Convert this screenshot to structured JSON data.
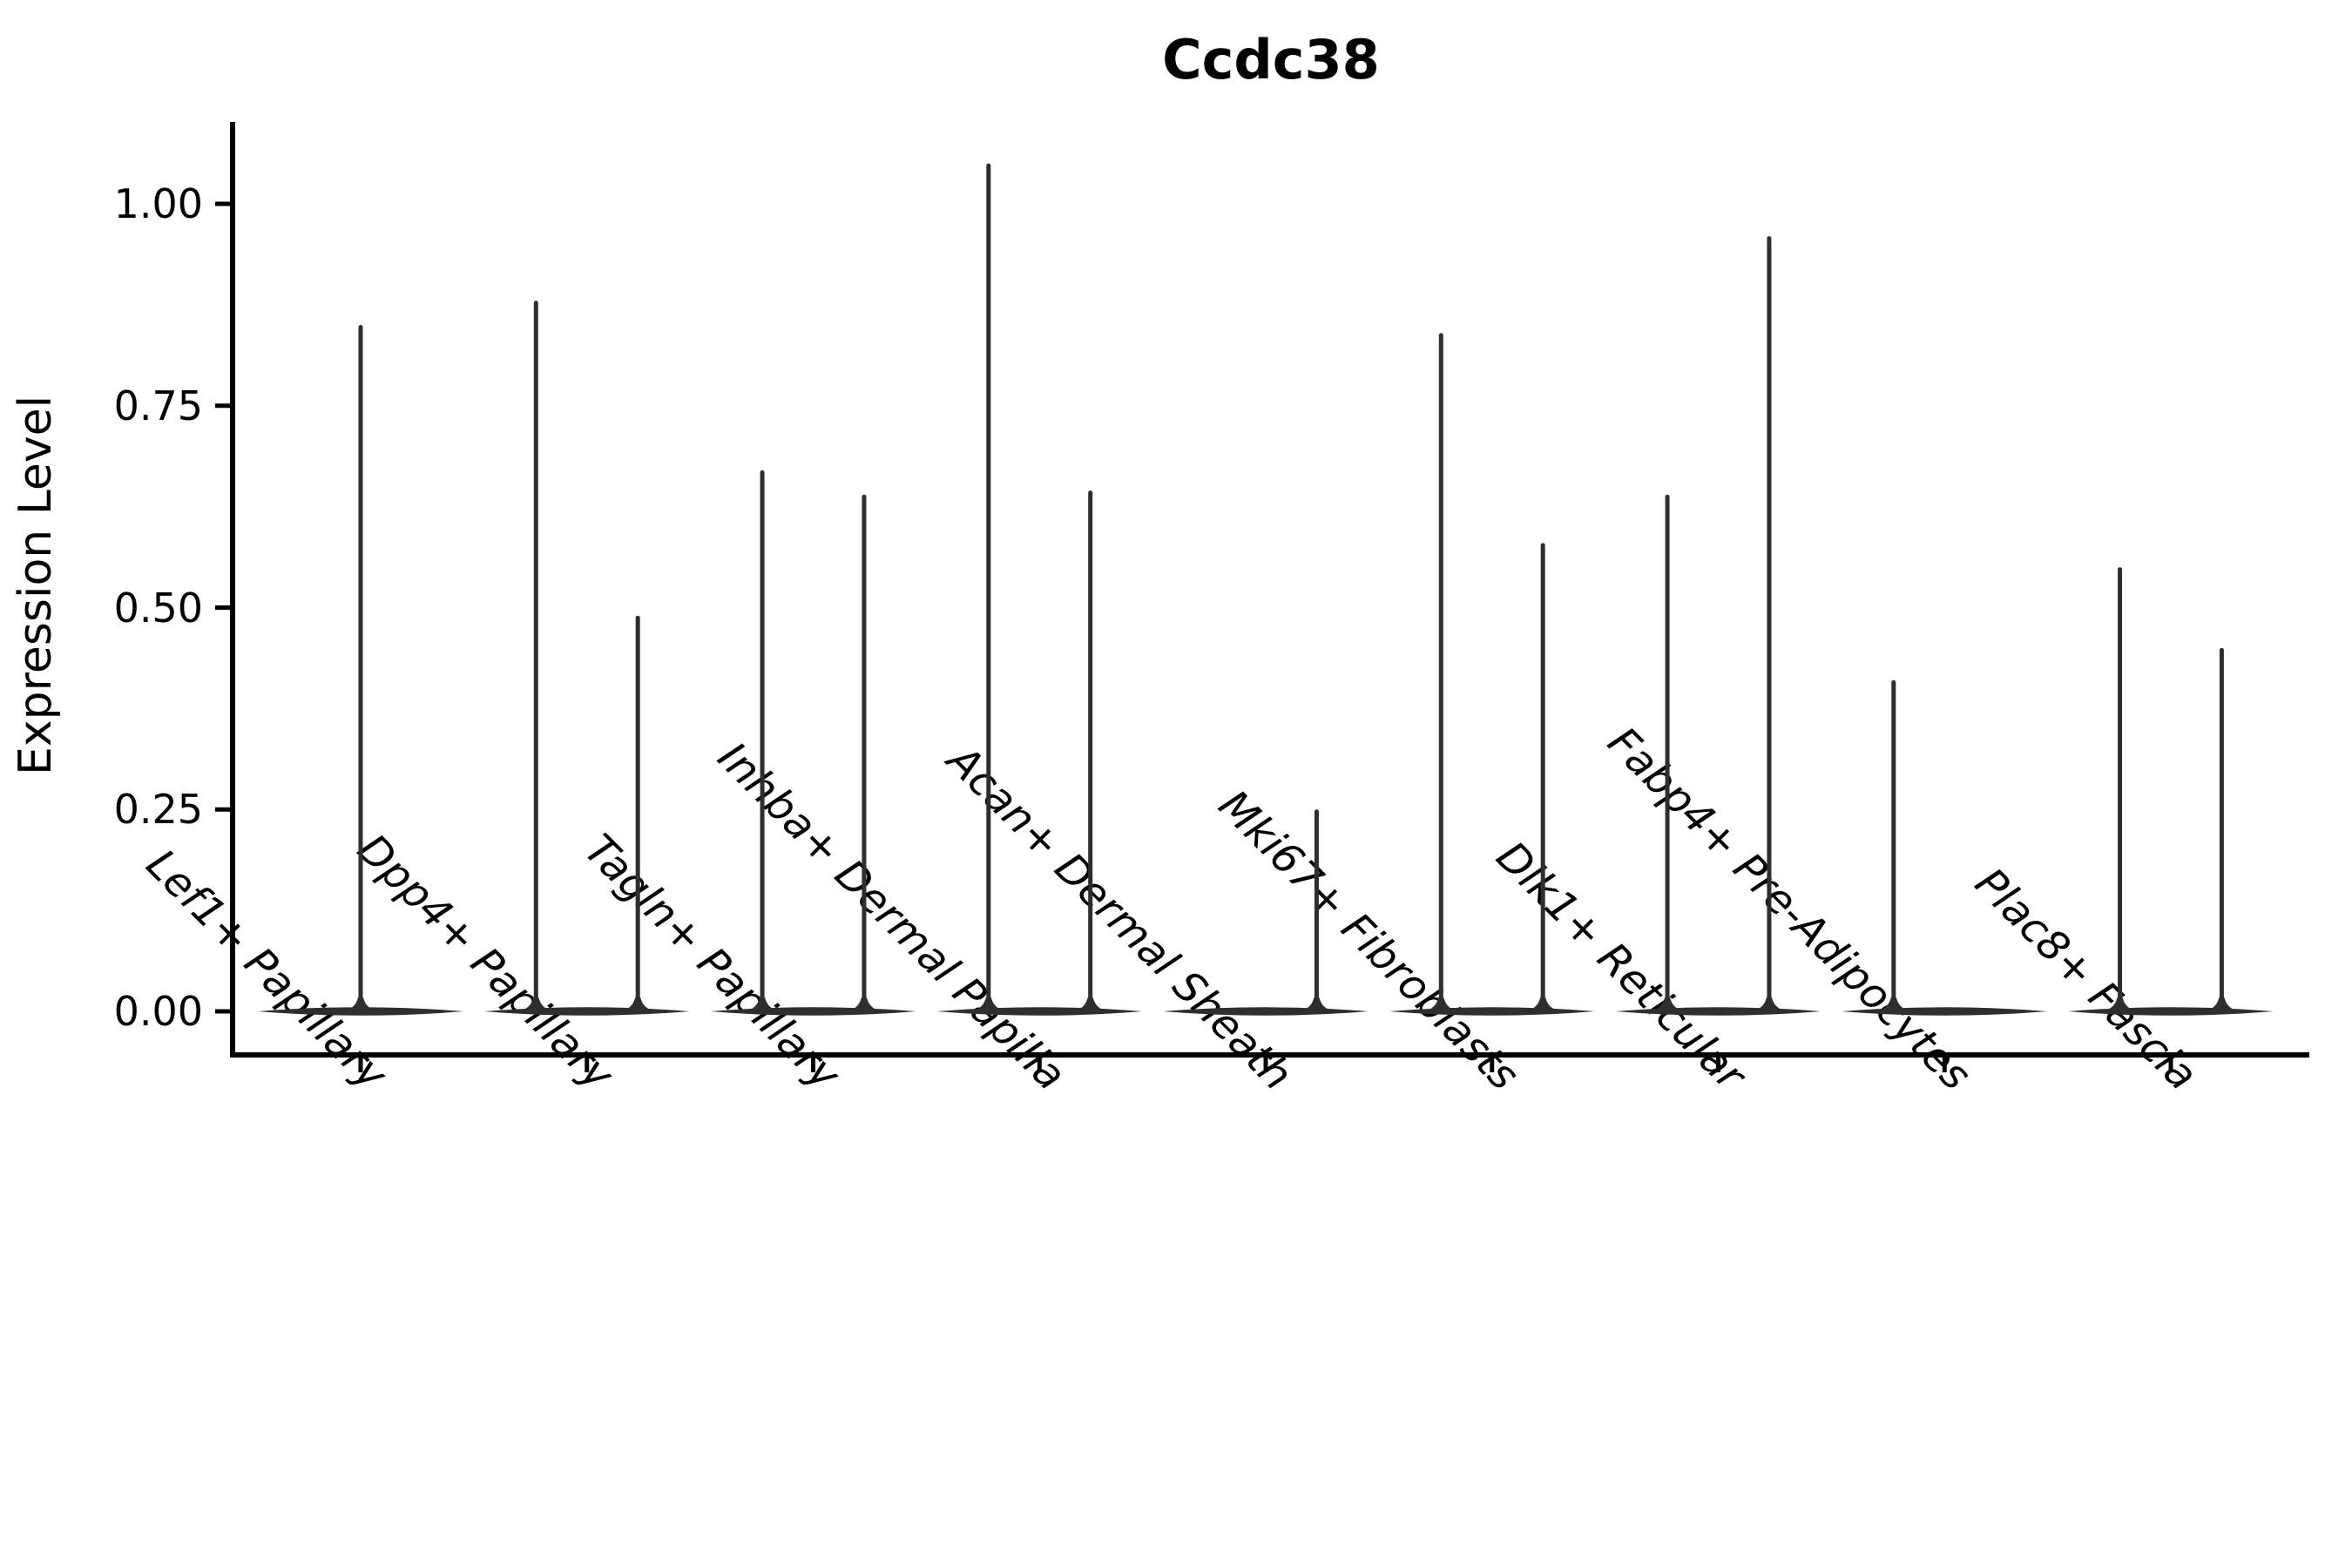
{
  "title": "Ccdc38",
  "y_axis": {
    "label": "Expression Level",
    "tick_labels": [
      "0.00",
      "0.25",
      "0.50",
      "0.75",
      "1.00"
    ]
  },
  "x_axis": {
    "categories": [
      "Lef1+ Papillary",
      "Dpp4+ Papillary",
      "Tagln+ Papillary",
      "Inhba+ Dermal Papilla",
      "Acan+ Dermal Sheath",
      "Mki67+ Fibroblasts",
      "Dlk1+ Reticular",
      "Fabp4+ Pre-Adipocytes",
      "Plac8+ Fascia"
    ]
  },
  "chart_data": {
    "type": "violin",
    "title": "Ccdc38",
    "xlabel": "",
    "ylabel": "Expression Level",
    "ylim": [
      -0.054,
      1.101
    ],
    "yticks": [
      0.0,
      0.25,
      0.5,
      0.75,
      1.0
    ],
    "ytick_labels": [
      "0.00",
      "0.25",
      "0.50",
      "0.75",
      "1.00"
    ],
    "grid": false,
    "legend": "none",
    "ink_color": "#2e2e2e",
    "axis_color": "#000000",
    "violin_width": 0.9,
    "dodge_offset": 0.225,
    "categories": [
      "Lef1+ Papillary",
      "Dpp4+ Papillary",
      "Tagln+ Papillary",
      "Inhba+ Dermal Papilla",
      "Acan+ Dermal Sheath",
      "Mki67+ Fibroblasts",
      "Dlk1+ Reticular",
      "Fabp4+ Pre-Adipocytes",
      "Plac8+ Fascia"
    ],
    "violins": [
      {
        "category": "Lef1+ Papillary",
        "spikes": [
          {
            "offset": 0.0,
            "max": 0.85
          }
        ]
      },
      {
        "category": "Dpp4+ Papillary",
        "spikes": [
          {
            "offset": -0.225,
            "max": 0.88
          },
          {
            "offset": 0.225,
            "max": 0.49
          }
        ]
      },
      {
        "category": "Tagln+ Papillary",
        "spikes": [
          {
            "offset": -0.225,
            "max": 0.67
          },
          {
            "offset": 0.225,
            "max": 0.64
          }
        ]
      },
      {
        "category": "Inhba+ Dermal Papilla",
        "spikes": [
          {
            "offset": -0.225,
            "max": 1.05
          },
          {
            "offset": 0.225,
            "max": 0.645
          }
        ]
      },
      {
        "category": "Acan+ Dermal Sheath",
        "spikes": [
          {
            "offset": 0.225,
            "max": 0.25
          }
        ]
      },
      {
        "category": "Mki67+ Fibroblasts",
        "spikes": [
          {
            "offset": -0.225,
            "max": 0.84
          },
          {
            "offset": 0.225,
            "max": 0.58
          }
        ]
      },
      {
        "category": "Dlk1+ Reticular",
        "spikes": [
          {
            "offset": -0.225,
            "max": 0.64
          },
          {
            "offset": 0.225,
            "max": 0.96
          }
        ]
      },
      {
        "category": "Fabp4+ Pre-Adipocytes",
        "spikes": [
          {
            "offset": -0.225,
            "max": 0.41
          }
        ]
      },
      {
        "category": "Plac8+ Fascia",
        "spikes": [
          {
            "offset": -0.225,
            "max": 0.55
          },
          {
            "offset": 0.225,
            "max": 0.45
          }
        ]
      }
    ]
  }
}
